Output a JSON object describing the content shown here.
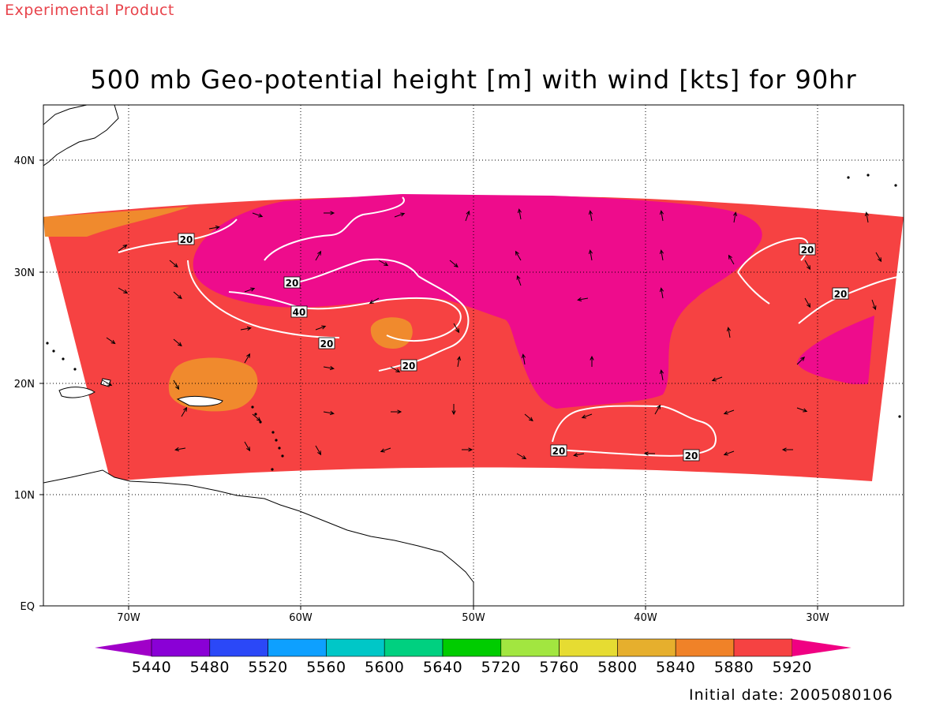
{
  "watermark": "Experimental Product",
  "title": "500 mb Geo-potential height [m] with wind [kts] for 90hr",
  "init_label": "Initial date:",
  "init_value": "2005080106",
  "colors": {
    "land": "#ffffff",
    "base": "#f64242",
    "orange": "#f08a2d",
    "magenta": "#ee0c8c",
    "contour": "#ffffff"
  },
  "map": {
    "lat_labels": [
      "EQ",
      "10N",
      "20N",
      "30N",
      "40N"
    ],
    "lon_labels": [
      "70W",
      "60W",
      "50W",
      "40W",
      "30W"
    ],
    "contour_labels": [
      "20",
      "20",
      "40",
      "20",
      "20",
      "20",
      "20",
      "20",
      "20"
    ]
  },
  "colorbar": {
    "colors": [
      "#8a00d6",
      "#2b48f7",
      "#0ea0ff",
      "#00c7c7",
      "#00d080",
      "#00cc00",
      "#a2e640",
      "#e6dc32",
      "#e6af2d",
      "#f08228",
      "#f64242"
    ],
    "left_cap": "#a000c8",
    "right_cap": "#f00082",
    "labels": [
      "5440",
      "5480",
      "5520",
      "5560",
      "5600",
      "5640",
      "5720",
      "5760",
      "5800",
      "5840",
      "5880",
      "5920"
    ]
  }
}
